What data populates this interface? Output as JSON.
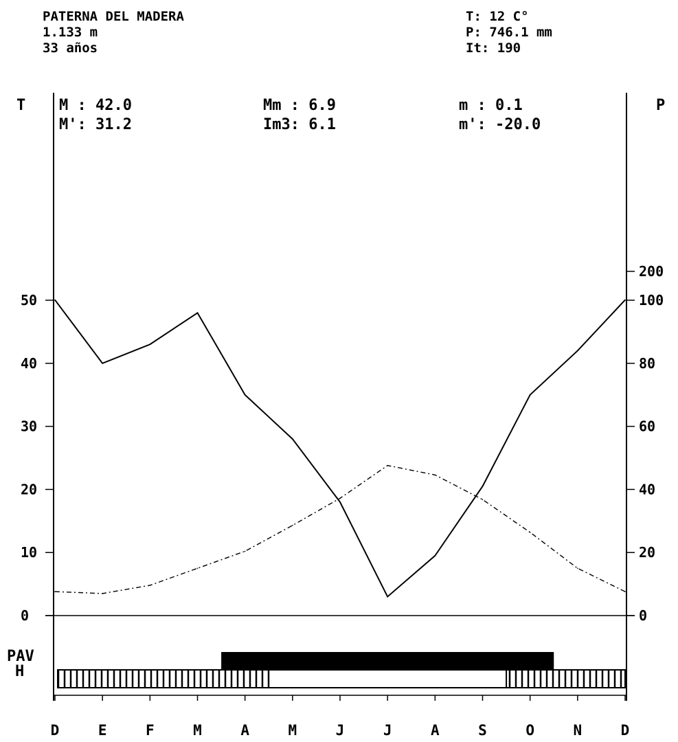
{
  "station": {
    "name": "PATERNA DEL MADERA",
    "altitude": "1.133 m",
    "years": "33 años"
  },
  "summary": {
    "T": "T:  12 C°",
    "P": "P:  746.1 mm",
    "It": "It: 190"
  },
  "stats": {
    "M": "M : 42.0",
    "M_prime": "M': 31.2",
    "Mm": "Mm : 6.9",
    "Im3": "Im3: 6.1",
    "m": "m : 0.1",
    "m_prime": "m': -20.0"
  },
  "axis_titles": {
    "left": "T",
    "right": "P"
  },
  "row_labels": {
    "pav": "PAV",
    "h": "H"
  },
  "chart_data": {
    "type": "line",
    "categories": [
      "D",
      "E",
      "F",
      "M",
      "A",
      "M",
      "J",
      "J",
      "A",
      "S",
      "O",
      "N",
      "D"
    ],
    "y_left": {
      "label": "T",
      "range": [
        0,
        50
      ],
      "ticks": [
        0,
        10,
        20,
        30,
        40,
        50
      ]
    },
    "y_right": {
      "label": "P",
      "range": [
        0,
        200
      ],
      "ticks": [
        0,
        20,
        40,
        60,
        80,
        100,
        200
      ]
    },
    "series": [
      {
        "style": "solid",
        "axis": "right",
        "values": [
          101,
          80,
          86,
          96,
          70,
          56,
          36,
          6,
          19,
          41,
          70,
          84,
          101
        ]
      },
      {
        "style": "dash-dot",
        "axis": "left",
        "values": [
          3.8,
          3.5,
          4.8,
          7.5,
          10.2,
          14.3,
          18.6,
          23.8,
          22.3,
          18.4,
          13.2,
          7.5,
          3.8
        ]
      }
    ],
    "pav_bar": {
      "start_month": 3.5,
      "end_month": 10.5,
      "style": "solid-black"
    },
    "h_periods": [
      {
        "start_month": 0,
        "end_month": 4.5,
        "style": "hatched"
      },
      {
        "start_month": 9.5,
        "end_month": 12,
        "style": "hatched"
      }
    ]
  }
}
